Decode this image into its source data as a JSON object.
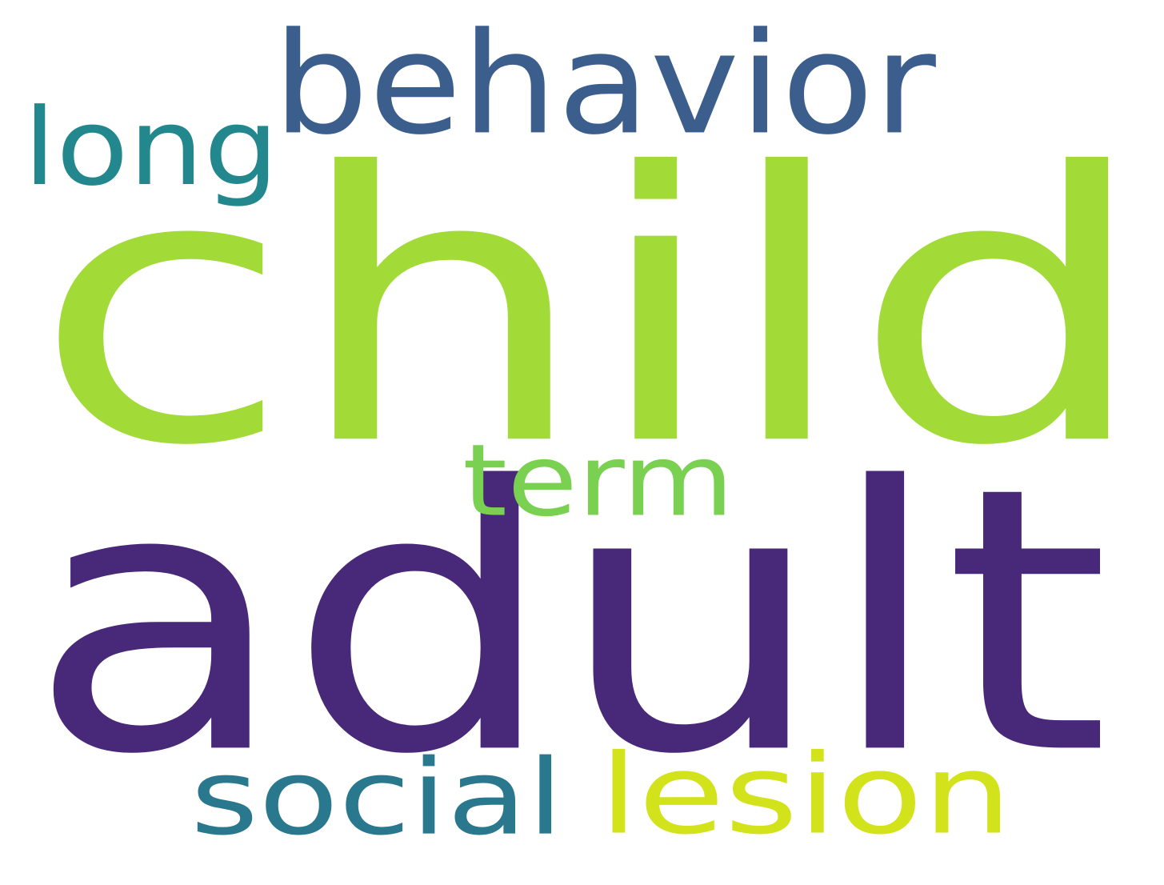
{
  "word_cloud": {
    "background_color": "#ffffff",
    "words": [
      {
        "id": "child",
        "text": "child",
        "color": "#a2da37"
      },
      {
        "id": "adult",
        "text": "adult",
        "color": "#482878"
      },
      {
        "id": "behavior",
        "text": "behavior",
        "color": "#3b5e8d"
      },
      {
        "id": "long",
        "text": "long",
        "color": "#23878e"
      },
      {
        "id": "term",
        "text": "term",
        "color": "#7ad151"
      },
      {
        "id": "social",
        "text": "social",
        "color": "#2a788e"
      },
      {
        "id": "lesion",
        "text": "lesion",
        "color": "#d2e21b"
      }
    ]
  }
}
